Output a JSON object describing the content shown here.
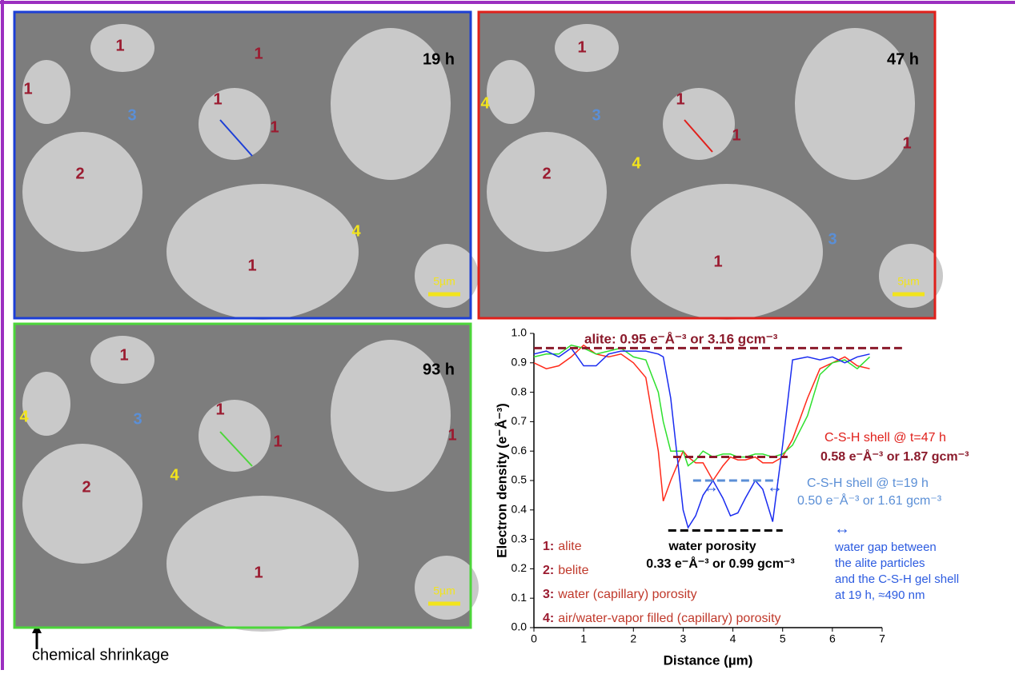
{
  "panels": [
    {
      "time": "19 h",
      "scale": "5µm",
      "border": "#1c3fd6",
      "labels": [
        {
          "text": "1",
          "color": "#9b1b30"
        },
        {
          "text": "1",
          "color": "#9b1b30"
        },
        {
          "text": "1",
          "color": "#9b1b30"
        },
        {
          "text": "1",
          "color": "#9b1b30"
        },
        {
          "text": "1",
          "color": "#9b1b30"
        },
        {
          "text": "3",
          "color": "#5b8fd6"
        },
        {
          "text": "2",
          "color": "#9b1b30"
        },
        {
          "text": "4",
          "color": "#f2e41c"
        },
        {
          "text": "1",
          "color": "#9b1b30"
        }
      ]
    },
    {
      "time": "47 h",
      "scale": "5µm",
      "border": "#e0201b",
      "labels": [
        {
          "text": "1",
          "color": "#9b1b30"
        },
        {
          "text": "4",
          "color": "#f2e41c"
        },
        {
          "text": "3",
          "color": "#5b8fd6"
        },
        {
          "text": "1",
          "color": "#9b1b30"
        },
        {
          "text": "1",
          "color": "#9b1b30"
        },
        {
          "text": "1",
          "color": "#9b1b30"
        },
        {
          "text": "2",
          "color": "#9b1b30"
        },
        {
          "text": "4",
          "color": "#f2e41c"
        },
        {
          "text": "3",
          "color": "#5b8fd6"
        },
        {
          "text": "1",
          "color": "#9b1b30"
        }
      ]
    },
    {
      "time": "93 h",
      "scale": "5µm",
      "border": "#4cd63a",
      "labels": [
        {
          "text": "1",
          "color": "#9b1b30"
        },
        {
          "text": "4",
          "color": "#f2e41c"
        },
        {
          "text": "3",
          "color": "#5b8fd6"
        },
        {
          "text": "1",
          "color": "#9b1b30"
        },
        {
          "text": "1",
          "color": "#9b1b30"
        },
        {
          "text": "1",
          "color": "#9b1b30"
        },
        {
          "text": "2",
          "color": "#9b1b30"
        },
        {
          "text": "4",
          "color": "#f2e41c"
        },
        {
          "text": "1",
          "color": "#9b1b30"
        }
      ]
    }
  ],
  "caption": "chemical shrinkage",
  "chart_data": {
    "type": "line",
    "x_label": "Distance (µm)",
    "y_label": "Electron density (e⁻Å⁻³)",
    "x": [
      0,
      0.25,
      0.5,
      0.75,
      1,
      1.25,
      1.5,
      1.75,
      2,
      2.25,
      2.5,
      2.6,
      2.75,
      3,
      3.1,
      3.25,
      3.4,
      3.6,
      3.8,
      3.95,
      4.1,
      4.25,
      4.45,
      4.6,
      4.8,
      5,
      5.2,
      5.5,
      5.75,
      6,
      6.25,
      6.5,
      6.75
    ],
    "series": [
      {
        "color": "#ff2a1a",
        "values": [
          0.9,
          0.88,
          0.89,
          0.92,
          0.96,
          0.93,
          0.92,
          0.93,
          0.9,
          0.85,
          0.6,
          0.43,
          0.5,
          0.6,
          0.58,
          0.56,
          0.56,
          0.5,
          0.55,
          0.58,
          0.57,
          0.57,
          0.58,
          0.56,
          0.56,
          0.58,
          0.64,
          0.78,
          0.88,
          0.9,
          0.92,
          0.89,
          0.88
        ]
      },
      {
        "color": "#2ee02e",
        "values": [
          0.92,
          0.93,
          0.93,
          0.96,
          0.95,
          0.93,
          0.94,
          0.95,
          0.92,
          0.91,
          0.8,
          0.7,
          0.6,
          0.6,
          0.55,
          0.57,
          0.6,
          0.58,
          0.59,
          0.59,
          0.58,
          0.58,
          0.59,
          0.59,
          0.58,
          0.59,
          0.62,
          0.72,
          0.86,
          0.9,
          0.91,
          0.88,
          0.92
        ]
      },
      {
        "color": "#1a2cf0",
        "values": [
          0.93,
          0.94,
          0.92,
          0.95,
          0.89,
          0.89,
          0.93,
          0.94,
          0.94,
          0.94,
          0.93,
          0.92,
          0.78,
          0.4,
          0.34,
          0.38,
          0.45,
          0.5,
          0.44,
          0.38,
          0.39,
          0.44,
          0.5,
          0.47,
          0.36,
          0.62,
          0.91,
          0.92,
          0.91,
          0.92,
          0.9,
          0.92,
          0.93
        ]
      }
    ],
    "xlim": [
      0,
      7
    ],
    "ylim": [
      0,
      1
    ],
    "xticks": [
      0,
      1,
      2,
      3,
      4,
      5,
      6,
      7
    ],
    "yticks": [
      {
        "value": 0,
        "label": "0.0"
      },
      0.1,
      0.2,
      0.3,
      0.4,
      0.5,
      0.6,
      0.7,
      0.8,
      0.9,
      {
        "value": 1,
        "label": "1.0"
      }
    ],
    "reference_lines": [
      {
        "y": 0.95,
        "x": [
          0,
          7.4
        ],
        "color": "#8b1a2b"
      },
      {
        "y": 0.58,
        "x": [
          2.8,
          5.1
        ],
        "color": "#8b1a2b"
      },
      {
        "y": 0.5,
        "x": [
          3.2,
          4.9
        ],
        "color": "#5b8fd6"
      },
      {
        "y": 0.33,
        "x": [
          2.7,
          5.0
        ],
        "color": "#000000"
      }
    ],
    "annotations": {
      "alite": "alite: 0.95 e⁻Å⁻³ or 3.16 gcm⁻³",
      "shell47": "C-S-H shell @ t=47 h",
      "shell47_value": "0.58 e⁻Å⁻³ or 1.87 gcm⁻³",
      "shell19": "C-S-H shell @ t=19 h",
      "shell19_value": "0.50 e⁻Å⁻³ or 1.61 gcm⁻³",
      "porosity": "water porosity",
      "porosity_value": "0.33 e⁻Å⁻³ or 0.99 gcm⁻³",
      "gap_symbol": "↔",
      "gap_note": [
        "water gap between",
        "the alite particles",
        "and the C-S-H gel shell",
        "at 19 h, ≈490 nm"
      ]
    },
    "key": [
      {
        "key": "1:",
        "text": "alite"
      },
      {
        "key": "2:",
        "text": "belite"
      },
      {
        "key": "3:",
        "text": "water (capillary) porosity"
      },
      {
        "key": "4:",
        "text": "air/water-vapor filled (capillary) porosity"
      }
    ]
  }
}
